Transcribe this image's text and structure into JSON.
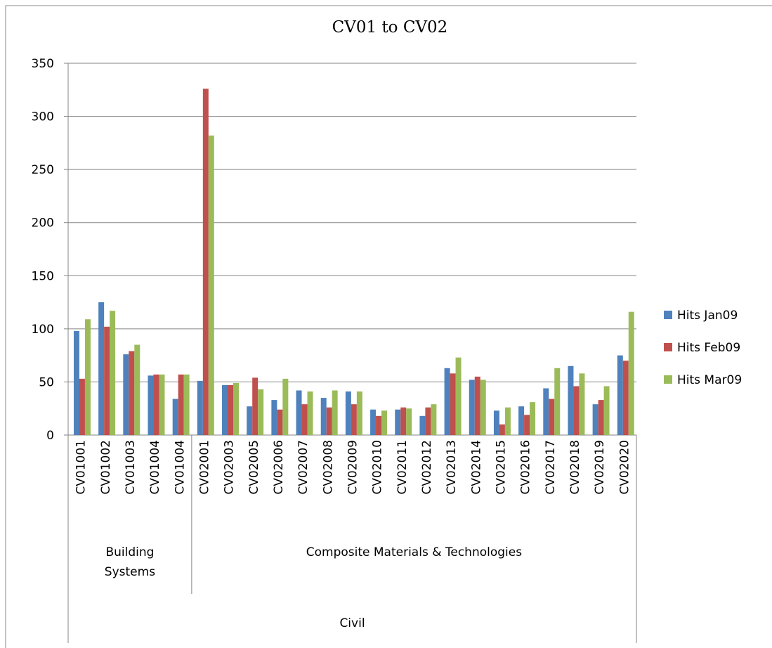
{
  "chart_data": {
    "type": "bar",
    "title": "CV01 to CV02",
    "categories": [
      "CV01001",
      "CV01002",
      "CV01003",
      "CV01004",
      "CV01004",
      "CV02001",
      "CV02003",
      "CV02005",
      "CV02006",
      "CV02007",
      "CV02008",
      "CV02009",
      "CV02010",
      "CV02011",
      "CV02012",
      "CV02013",
      "CV02014",
      "CV02015",
      "CV02016",
      "CV02017",
      "CV02018",
      "CV02019",
      "CV02020"
    ],
    "groups": [
      {
        "name": "Building Systems",
        "size": 5
      },
      {
        "name": "Composite Materials & Technologies",
        "size": 18
      }
    ],
    "supergroup": "Civil",
    "series": [
      {
        "name": "Hits Jan09",
        "color": "#4f81bd",
        "values": [
          98,
          125,
          76,
          56,
          34,
          51,
          47,
          27,
          33,
          42,
          35,
          41,
          24,
          24,
          18,
          63,
          52,
          23,
          27,
          44,
          65,
          29,
          75
        ]
      },
      {
        "name": "Hits Feb09",
        "color": "#c0504d",
        "values": [
          53,
          102,
          79,
          57,
          57,
          326,
          47,
          54,
          24,
          29,
          26,
          29,
          18,
          26,
          26,
          58,
          55,
          10,
          19,
          34,
          46,
          33,
          70
        ]
      },
      {
        "name": "Hits Mar09",
        "color": "#9bbb59",
        "values": [
          109,
          117,
          85,
          57,
          57,
          282,
          49,
          43,
          53,
          41,
          42,
          41,
          23,
          25,
          29,
          73,
          52,
          26,
          31,
          63,
          58,
          46,
          116
        ]
      }
    ],
    "ylim": [
      0,
      350
    ],
    "yticks": [
      0,
      50,
      100,
      150,
      200,
      250,
      300,
      350
    ],
    "grid": true,
    "legend": "right"
  }
}
